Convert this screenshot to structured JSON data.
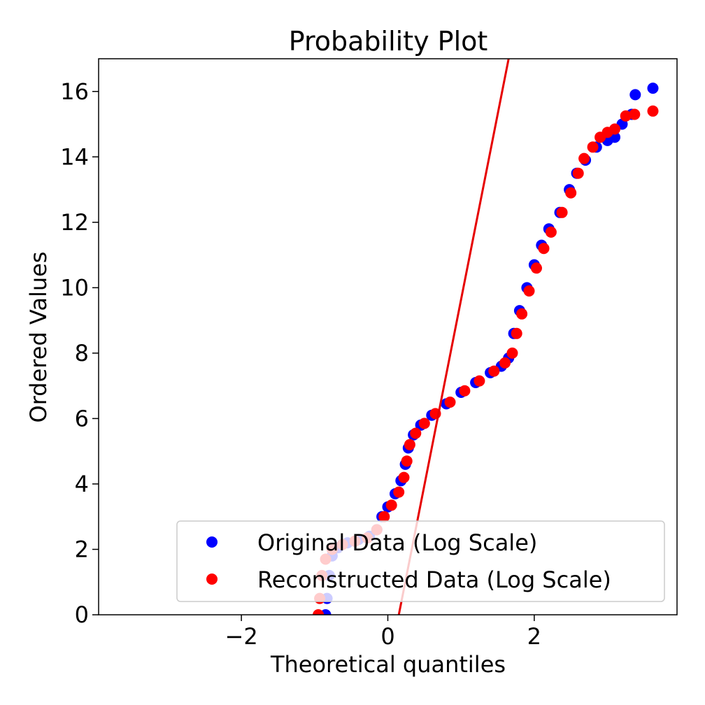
{
  "chart_data": {
    "type": "scatter",
    "title": "Probability Plot",
    "xlabel": "Theoretical quantiles",
    "ylabel": "Ordered Values",
    "xlim": [
      -3.95,
      3.95
    ],
    "ylim": [
      0,
      17
    ],
    "xticks": [
      -2,
      0,
      2
    ],
    "xtick_labels": [
      "−2",
      "0",
      "2"
    ],
    "yticks": [
      0,
      2,
      4,
      6,
      8,
      10,
      12,
      14,
      16
    ],
    "ytick_labels": [
      "0",
      "2",
      "4",
      "6",
      "8",
      "10",
      "12",
      "14",
      "16"
    ],
    "grid": false,
    "legend_position": "lower-right",
    "series": [
      {
        "name": "Original Data (Log Scale)",
        "color": "#0000ff",
        "points": [
          [
            -0.85,
            0
          ],
          [
            -0.83,
            0.5
          ],
          [
            -0.8,
            1.2
          ],
          [
            -0.76,
            1.8
          ],
          [
            -0.68,
            2.05
          ],
          [
            -0.55,
            2.2
          ],
          [
            -0.4,
            2.3
          ],
          [
            -0.25,
            2.4
          ],
          [
            -0.15,
            2.6
          ],
          [
            -0.08,
            3.0
          ],
          [
            0.0,
            3.3
          ],
          [
            0.1,
            3.7
          ],
          [
            0.18,
            4.1
          ],
          [
            0.24,
            4.6
          ],
          [
            0.28,
            5.1
          ],
          [
            0.35,
            5.5
          ],
          [
            0.45,
            5.8
          ],
          [
            0.6,
            6.1
          ],
          [
            0.8,
            6.45
          ],
          [
            1.0,
            6.8
          ],
          [
            1.2,
            7.1
          ],
          [
            1.4,
            7.4
          ],
          [
            1.55,
            7.6
          ],
          [
            1.65,
            7.85
          ],
          [
            1.72,
            8.6
          ],
          [
            1.8,
            9.3
          ],
          [
            1.9,
            10.0
          ],
          [
            2.0,
            10.7
          ],
          [
            2.1,
            11.3
          ],
          [
            2.2,
            11.8
          ],
          [
            2.35,
            12.3
          ],
          [
            2.48,
            13.0
          ],
          [
            2.58,
            13.5
          ],
          [
            2.7,
            13.9
          ],
          [
            2.85,
            14.3
          ],
          [
            3.0,
            14.5
          ],
          [
            3.1,
            14.6
          ],
          [
            3.2,
            15.0
          ],
          [
            3.33,
            15.3
          ],
          [
            3.38,
            15.9
          ],
          [
            3.62,
            16.1
          ]
        ]
      },
      {
        "name": "Reconstructed Data (Log Scale)",
        "color": "#ff0000",
        "points": [
          [
            -0.95,
            0
          ],
          [
            -0.93,
            0.5
          ],
          [
            -0.9,
            1.2
          ],
          [
            -0.85,
            1.7
          ],
          [
            -0.76,
            2.0
          ],
          [
            -0.62,
            2.15
          ],
          [
            -0.45,
            2.25
          ],
          [
            -0.28,
            2.35
          ],
          [
            -0.15,
            2.6
          ],
          [
            -0.05,
            3.0
          ],
          [
            0.05,
            3.35
          ],
          [
            0.15,
            3.75
          ],
          [
            0.22,
            4.2
          ],
          [
            0.26,
            4.7
          ],
          [
            0.3,
            5.2
          ],
          [
            0.38,
            5.55
          ],
          [
            0.5,
            5.85
          ],
          [
            0.65,
            6.15
          ],
          [
            0.85,
            6.5
          ],
          [
            1.05,
            6.85
          ],
          [
            1.25,
            7.15
          ],
          [
            1.45,
            7.45
          ],
          [
            1.6,
            7.7
          ],
          [
            1.7,
            8.0
          ],
          [
            1.76,
            8.6
          ],
          [
            1.83,
            9.2
          ],
          [
            1.93,
            9.9
          ],
          [
            2.03,
            10.6
          ],
          [
            2.13,
            11.2
          ],
          [
            2.23,
            11.7
          ],
          [
            2.38,
            12.3
          ],
          [
            2.5,
            12.9
          ],
          [
            2.6,
            13.5
          ],
          [
            2.68,
            13.95
          ],
          [
            2.8,
            14.3
          ],
          [
            2.9,
            14.6
          ],
          [
            3.0,
            14.75
          ],
          [
            3.1,
            14.85
          ],
          [
            3.25,
            15.25
          ],
          [
            3.37,
            15.3
          ],
          [
            3.62,
            15.4
          ]
        ]
      }
    ],
    "fit_line": {
      "color": "#e60000",
      "x1": 0.15,
      "y1": 0,
      "x2": 1.65,
      "y2": 17
    }
  }
}
